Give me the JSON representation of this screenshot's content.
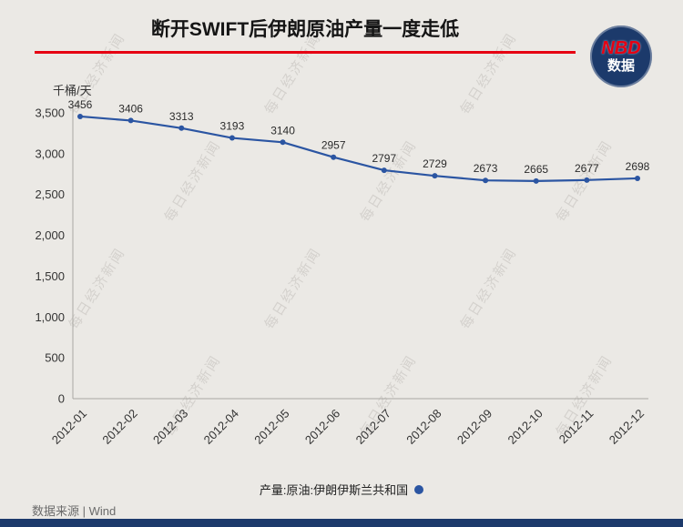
{
  "header": {
    "title": "断开SWIFT后伊朗原油产量一度走低"
  },
  "logo": {
    "line1": "NBD",
    "line2": "数据"
  },
  "watermark": {
    "text": "每日经济新闻"
  },
  "chart_data": {
    "type": "line",
    "title": "断开SWIFT后伊朗原油产量一度走低",
    "ylabel": "千桶/天",
    "xlabel": "",
    "categories": [
      "2012-01",
      "2012-02",
      "2012-03",
      "2012-04",
      "2012-05",
      "2012-06",
      "2012-07",
      "2012-08",
      "2012-09",
      "2012-10",
      "2012-11",
      "2012-12"
    ],
    "series": [
      {
        "name": "产量:原油:伊朗伊斯兰共和国",
        "color": "#2b55a2",
        "values": [
          3456,
          3406,
          3313,
          3193,
          3140,
          2957,
          2797,
          2729,
          2673,
          2665,
          2677,
          2698
        ]
      }
    ],
    "ylim": [
      0,
      3500
    ],
    "ytick_step": 500,
    "grid": false,
    "legend_position": "bottom",
    "data_labels": true
  },
  "legend": {
    "label": "产量:原油:伊朗伊斯兰共和国"
  },
  "footer": {
    "source": "数据来源 | Wind"
  },
  "colors": {
    "accent_red": "#e60012",
    "navy": "#1c3a6b",
    "line_blue": "#2b55a2",
    "background": "#ebe9e5"
  }
}
